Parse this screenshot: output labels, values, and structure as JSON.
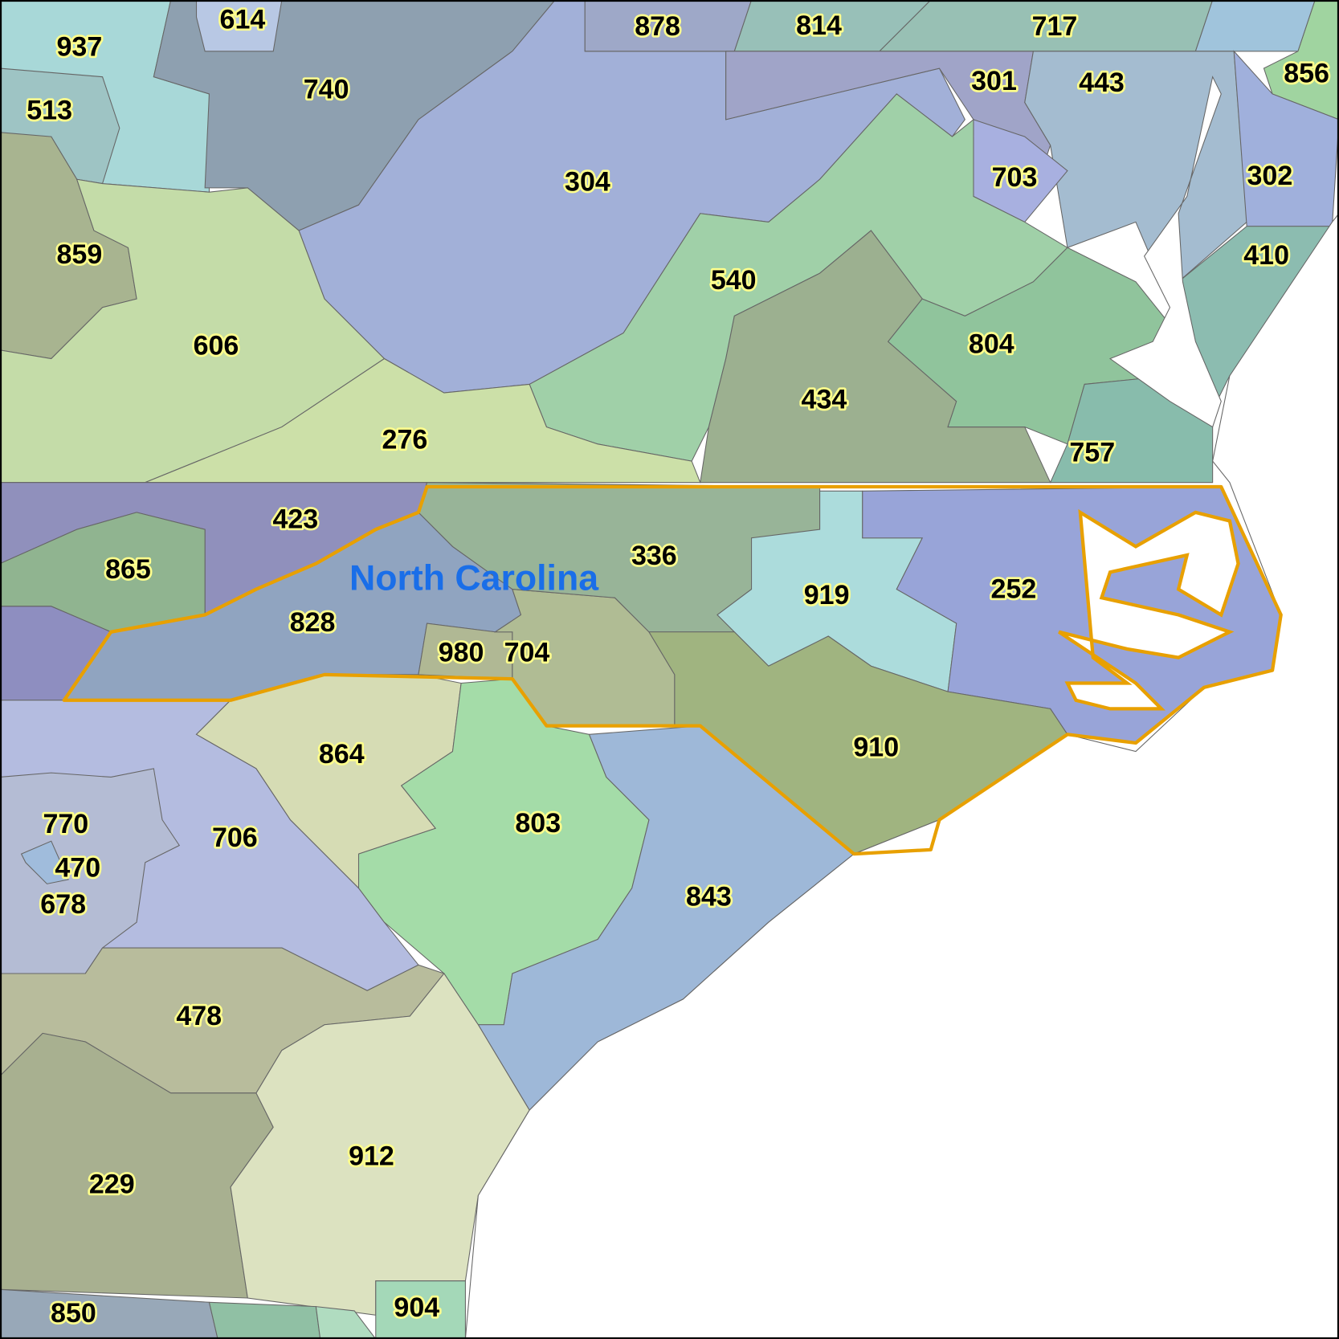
{
  "map": {
    "state_label": "North Carolina",
    "highlight_color": "#e8a000",
    "labels": [
      "937",
      "614",
      "740",
      "513",
      "878",
      "814",
      "717",
      "856",
      "301",
      "443",
      "304",
      "703",
      "302",
      "859",
      "410",
      "540",
      "606",
      "804",
      "434",
      "276",
      "757",
      "423",
      "336",
      "865",
      "919",
      "252",
      "828",
      "980",
      "704",
      "910",
      "864",
      "770",
      "706",
      "803",
      "470",
      "678",
      "843",
      "478",
      "912",
      "229",
      "850",
      "904"
    ]
  }
}
